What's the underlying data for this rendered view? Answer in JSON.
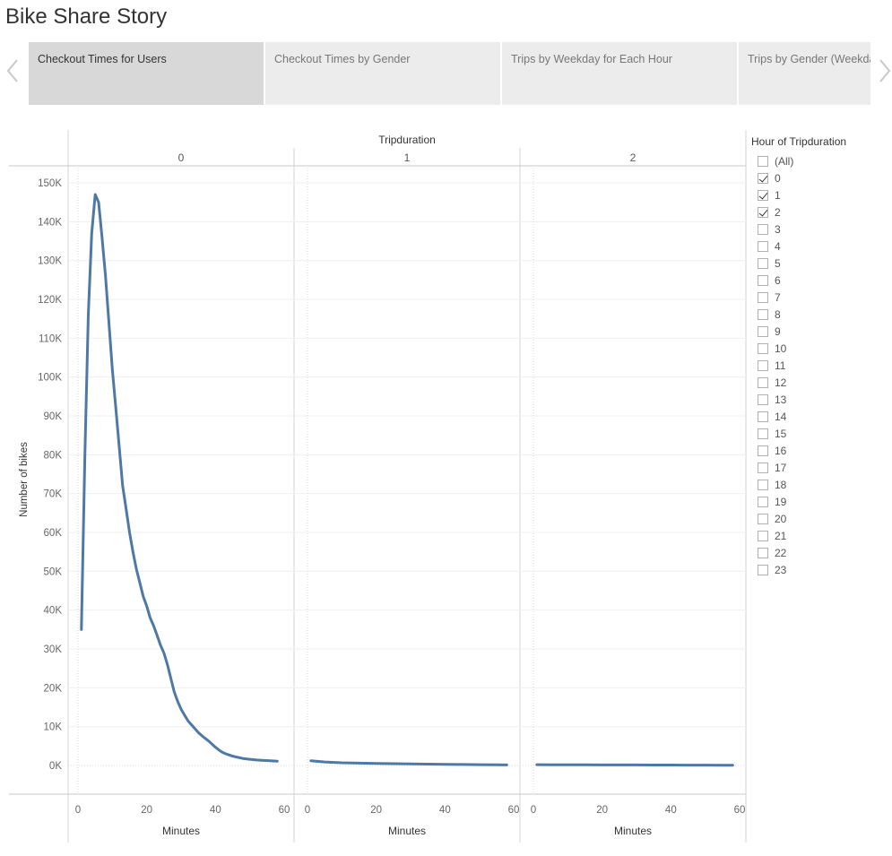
{
  "story": {
    "title": "Bike Share Story"
  },
  "tabs": [
    {
      "label": "Checkout Times for Users",
      "active": true
    },
    {
      "label": "Checkout Times by Gender",
      "active": false
    },
    {
      "label": "Trips by Weekday for Each Hour",
      "active": false
    },
    {
      "label": "Trips by Gender (Weekday per Hour)",
      "active": false
    }
  ],
  "icons": {
    "prev": "chevron-left-icon",
    "next": "chevron-right-icon"
  },
  "legend": {
    "title": "Hour of Tripduration",
    "items": [
      {
        "label": "(All)",
        "checked": false
      },
      {
        "label": "0",
        "checked": true
      },
      {
        "label": "1",
        "checked": true
      },
      {
        "label": "2",
        "checked": true
      },
      {
        "label": "3",
        "checked": false
      },
      {
        "label": "4",
        "checked": false
      },
      {
        "label": "5",
        "checked": false
      },
      {
        "label": "6",
        "checked": false
      },
      {
        "label": "7",
        "checked": false
      },
      {
        "label": "8",
        "checked": false
      },
      {
        "label": "9",
        "checked": false
      },
      {
        "label": "10",
        "checked": false
      },
      {
        "label": "11",
        "checked": false
      },
      {
        "label": "12",
        "checked": false
      },
      {
        "label": "13",
        "checked": false
      },
      {
        "label": "14",
        "checked": false
      },
      {
        "label": "15",
        "checked": false
      },
      {
        "label": "16",
        "checked": false
      },
      {
        "label": "17",
        "checked": false
      },
      {
        "label": "18",
        "checked": false
      },
      {
        "label": "19",
        "checked": false
      },
      {
        "label": "20",
        "checked": false
      },
      {
        "label": "21",
        "checked": false
      },
      {
        "label": "22",
        "checked": false
      },
      {
        "label": "23",
        "checked": false
      }
    ]
  },
  "chart_data": {
    "type": "line",
    "title": "Tripduration",
    "xlabel": "Minutes",
    "ylabel": "Number of bikes",
    "color": "#4e79a7",
    "xlim": [
      0,
      60
    ],
    "ylim": [
      0,
      150000
    ],
    "xticks": [
      0,
      20,
      40,
      60
    ],
    "yticks": [
      0,
      10000,
      20000,
      30000,
      40000,
      50000,
      60000,
      70000,
      80000,
      90000,
      100000,
      110000,
      120000,
      130000,
      140000,
      150000
    ],
    "ytick_labels": [
      "0K",
      "10K",
      "20K",
      "30K",
      "40K",
      "50K",
      "60K",
      "70K",
      "80K",
      "90K",
      "100K",
      "110K",
      "120K",
      "130K",
      "140K",
      "150K"
    ],
    "panels": [
      {
        "name": "0",
        "x": [
          1,
          2,
          3,
          4,
          5,
          6,
          7,
          8,
          9,
          10,
          11,
          12,
          13,
          14,
          15,
          16,
          17,
          18,
          19,
          20,
          21,
          22,
          23,
          24,
          25,
          26,
          27,
          28,
          29,
          30,
          31,
          32,
          33,
          34,
          35,
          36,
          37,
          38,
          39,
          40,
          41,
          42,
          43,
          44,
          45,
          46,
          47,
          48,
          50,
          52,
          54,
          56,
          58
        ],
        "values": [
          35000,
          80000,
          116000,
          137000,
          147000,
          145000,
          136000,
          126000,
          114000,
          102000,
          92000,
          82000,
          72000,
          66000,
          60000,
          55000,
          50500,
          47000,
          43500,
          41000,
          38000,
          36000,
          33500,
          31000,
          29000,
          26000,
          22500,
          19000,
          16500,
          14500,
          13000,
          11500,
          10500,
          9500,
          8500,
          7700,
          7000,
          6300,
          5500,
          4700,
          4000,
          3400,
          3000,
          2700,
          2400,
          2200,
          2000,
          1800,
          1600,
          1400,
          1300,
          1200,
          1100
        ]
      },
      {
        "name": "1",
        "x": [
          1,
          5,
          10,
          15,
          20,
          25,
          30,
          35,
          40,
          45,
          50,
          55,
          58
        ],
        "values": [
          1200,
          900,
          700,
          600,
          500,
          450,
          400,
          350,
          300,
          250,
          200,
          180,
          150
        ]
      },
      {
        "name": "2",
        "x": [
          1,
          5,
          10,
          15,
          20,
          25,
          30,
          35,
          40,
          45,
          50,
          55,
          58
        ],
        "values": [
          200,
          180,
          170,
          160,
          150,
          140,
          130,
          120,
          110,
          100,
          90,
          80,
          70
        ]
      }
    ]
  }
}
